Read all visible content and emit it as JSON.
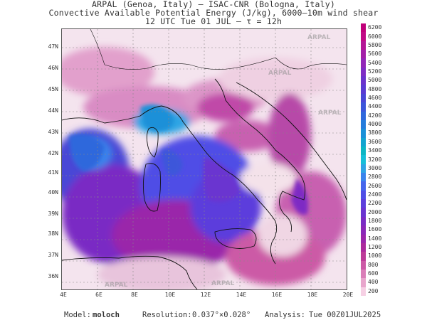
{
  "header": {
    "line1": "ARPAL (Genoa, Italy)  —  ISAC-CNR (Bologna, Italy)",
    "line2": "Convective Available Potential Energy (J/kg), 6000–10m wind shear",
    "line3": "12 UTC Tue 01 JUL  —  τ = 12h"
  },
  "map": {
    "lat_labels": [
      "47N",
      "46N",
      "45N",
      "44N",
      "43N",
      "42N",
      "41N",
      "40N",
      "39N",
      "38N",
      "37N",
      "36N"
    ],
    "lon_labels": [
      "4E",
      "6E",
      "8E",
      "10E",
      "12E",
      "14E",
      "16E",
      "18E",
      "20E"
    ],
    "watermark": "ARPAL"
  },
  "colorbar": {
    "labels": [
      "6200",
      "6000",
      "5800",
      "5600",
      "5400",
      "5200",
      "5000",
      "4800",
      "4600",
      "4400",
      "4200",
      "4000",
      "3800",
      "3600",
      "3400",
      "3200",
      "3000",
      "2800",
      "2600",
      "2400",
      "2200",
      "2000",
      "1800",
      "1600",
      "1400",
      "1200",
      "1000",
      "800",
      "600",
      "400",
      "200"
    ],
    "colors": [
      "#c0007a",
      "#c10a86",
      "#b41696",
      "#a21ea8",
      "#9226b8",
      "#7e2cc4",
      "#6a32cc",
      "#5a3ad2",
      "#4a46d6",
      "#3c56da",
      "#2f68dc",
      "#247cdc",
      "#1a90d8",
      "#12a4d0",
      "#0cb6c4",
      "#16bfd8",
      "#2ea4e4",
      "#3a84ec",
      "#4566ec",
      "#4f4ee6",
      "#5c3edc",
      "#6a34d0",
      "#7a2cc4",
      "#8a28b8",
      "#9a26aa",
      "#ac2a9c",
      "#bd3c98",
      "#cc5aa6",
      "#da7eb8",
      "#e8a6cc",
      "#f6d0e4"
    ]
  },
  "footer": {
    "model_label": "Model:",
    "model_name": "moloch",
    "resolution_label": "Resolution:",
    "resolution_value": "0.037°×0.028°",
    "analysis_label": "Analysis:",
    "analysis_value": "Tue 00Z01JUL2025"
  }
}
